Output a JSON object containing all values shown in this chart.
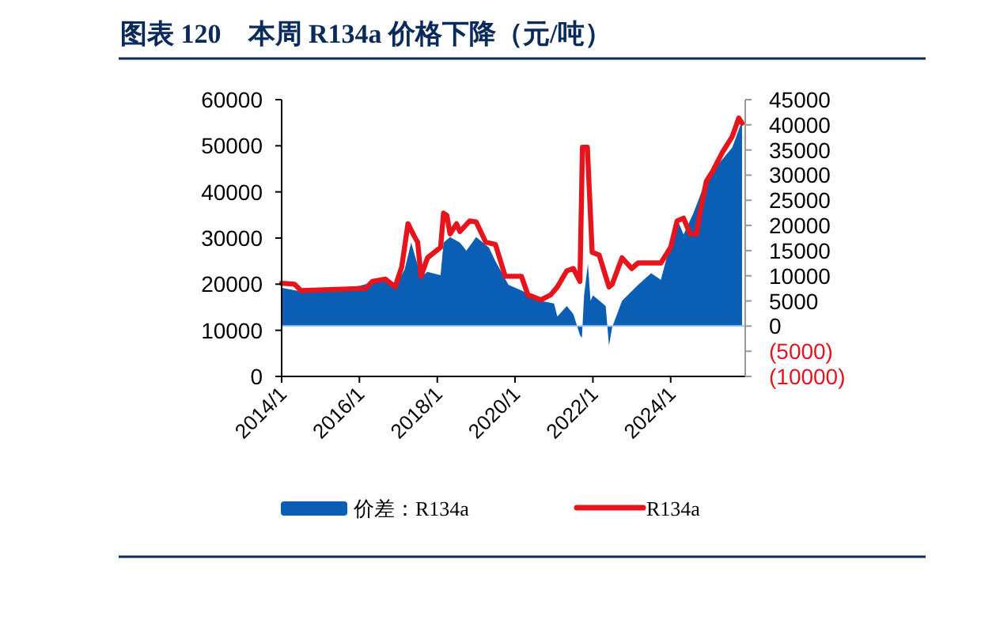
{
  "chart_data": {
    "type": "area",
    "title": "图表 120　本周 R134a 价格下降（元/吨）",
    "xlim": [
      "2014-01",
      "2025-12"
    ],
    "xticks": [
      {
        "value": "2014-01",
        "label": "2014/1"
      },
      {
        "value": "2016-01",
        "label": "2016/1"
      },
      {
        "value": "2018-01",
        "label": "2018/1"
      },
      {
        "value": "2020-01",
        "label": "2020/1"
      },
      {
        "value": "2022-01",
        "label": "2022/1"
      },
      {
        "value": "2024-01",
        "label": "2024/1"
      }
    ],
    "ylim": [
      0,
      60000
    ],
    "yticks": [
      0,
      10000,
      20000,
      30000,
      40000,
      50000,
      60000
    ],
    "y2lim": [
      -10000,
      45000
    ],
    "y2ticks": [
      {
        "value": -10000,
        "label": "(10000)"
      },
      {
        "value": -5000,
        "label": "(5000)"
      },
      0,
      5000,
      10000,
      15000,
      20000,
      25000,
      30000,
      35000,
      40000,
      45000
    ],
    "legend": "bottom",
    "grid": false,
    "ref_lines": [
      {
        "axis": "y2",
        "value": 0,
        "color": "#a9c8ea"
      }
    ],
    "series": [
      {
        "name": "价差：R134a",
        "axis": "y2",
        "color": "#0a5fb4",
        "x": [
          "2014-01",
          "2014-07",
          "2016-01",
          "2016-08",
          "2016-12",
          "2017-03",
          "2017-05",
          "2017-08",
          "2017-10",
          "2018-02",
          "2018-03",
          "2018-05",
          "2018-08",
          "2018-10",
          "2019-01",
          "2019-05",
          "2019-07",
          "2019-11",
          "2020-03",
          "2020-09",
          "2021-01",
          "2021-02",
          "2021-05",
          "2021-07",
          "2021-09-01",
          "2021-09-20",
          "2021-10-10",
          "2021-11-15",
          "2021-12-10",
          "2022-01",
          "2022-05",
          "2022-06",
          "2022-07",
          "2022-10",
          "2023-03",
          "2023-07",
          "2023-10",
          "2024-01",
          "2024-03",
          "2024-05",
          "2024-08",
          "2024-12",
          "2025-04",
          "2025-08",
          "2025-11"
        ],
        "values": [
          7600,
          6900,
          8000,
          9200,
          7600,
          11300,
          16600,
          9800,
          10800,
          10100,
          16600,
          17700,
          16600,
          15000,
          17700,
          15600,
          12900,
          8200,
          7100,
          5000,
          4500,
          1900,
          4000,
          2400,
          -1800,
          -2300,
          6100,
          12400,
          5000,
          6100,
          4000,
          -3900,
          -200,
          5000,
          8200,
          10500,
          9200,
          16600,
          21300,
          18200,
          22400,
          29200,
          32400,
          35500,
          40800
        ]
      },
      {
        "name": "R134a",
        "type": "line",
        "color": "#e8141c",
        "x": [
          "2014-01",
          "2014-05",
          "2014-07",
          "2016-03",
          "2016-05",
          "2016-09",
          "2016-12",
          "2017-02",
          "2017-04",
          "2017-06",
          "2017-07",
          "2017-08",
          "2017-10",
          "2018-02",
          "2018-03",
          "2018-04",
          "2018-05",
          "2018-07",
          "2018-08",
          "2018-11",
          "2019-01",
          "2019-04",
          "2019-07",
          "2019-10",
          "2020-03",
          "2020-05",
          "2020-09",
          "2020-12",
          "2021-02",
          "2021-05",
          "2021-07",
          "2021-09-01",
          "2021-09-25",
          "2021-11-10",
          "2021-12-25",
          "2022-03",
          "2022-06",
          "2022-07",
          "2022-10",
          "2023-01",
          "2023-03",
          "2023-10",
          "2024-01",
          "2024-03",
          "2024-05",
          "2024-07",
          "2024-09",
          "2024-10",
          "2024-12",
          "2025-02",
          "2025-05",
          "2025-08",
          "2025-10",
          "2025-11"
        ],
        "values": [
          20200,
          20000,
          18600,
          19100,
          20600,
          21100,
          19400,
          23700,
          33100,
          30300,
          29100,
          21700,
          25700,
          28000,
          35400,
          34900,
          30900,
          33100,
          31400,
          33700,
          33500,
          29100,
          28600,
          21700,
          21700,
          17700,
          16600,
          17700,
          19400,
          22900,
          23400,
          20600,
          49700,
          49700,
          26900,
          26300,
          19400,
          20000,
          25700,
          23400,
          24600,
          24600,
          28000,
          33700,
          34300,
          30900,
          30900,
          35400,
          42300,
          44600,
          48600,
          52000,
          56000,
          54900
        ]
      }
    ]
  }
}
